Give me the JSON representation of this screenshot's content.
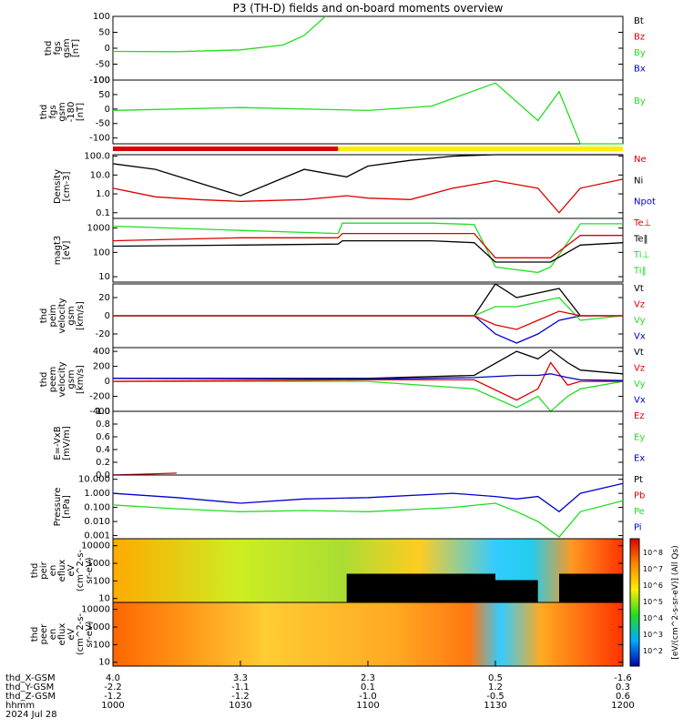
{
  "title": "P3 (TH-D) fields and on-board moments overview",
  "colors": {
    "black": "#000000",
    "red": "#dd0000",
    "green": "#22dd22",
    "blue": "#0000cc",
    "yellow": "#ffee00",
    "barred": "#dd0000"
  },
  "panels": [
    {
      "id": "fgs",
      "ylabel": [
        "thd",
        "fgs",
        "gsm",
        "[nT]"
      ],
      "ticks": [
        "100",
        "50",
        "0",
        "-50",
        "-100"
      ],
      "tickvals": [
        100,
        50,
        0,
        -50,
        -100
      ],
      "ylim": [
        -100,
        100
      ],
      "log": false,
      "legend": [
        {
          "t": "Bt",
          "c": "black"
        },
        {
          "t": "Bz",
          "c": "red"
        },
        {
          "t": "By",
          "c": "green"
        },
        {
          "t": "Bx",
          "c": "blue"
        }
      ]
    },
    {
      "id": "fgs2",
      "ylabel": [
        "thd",
        "fgs",
        "gsm",
        "-180",
        "[nT]"
      ],
      "ticks": [
        "100",
        "50",
        "0",
        "-50",
        "-100"
      ],
      "tickvals": [
        100,
        50,
        0,
        -50,
        -100
      ],
      "ylim": [
        -120,
        100
      ],
      "log": false,
      "legend": [
        {
          "t": "By",
          "c": "green"
        }
      ]
    },
    {
      "id": "density",
      "ylabel": [
        "Density",
        "[cm-3]"
      ],
      "ticks": [
        "100.0",
        "10.0",
        "1.0",
        "0.1"
      ],
      "tickvals": [
        100,
        10,
        1,
        0.1
      ],
      "ylim": [
        0.05,
        120
      ],
      "log": true,
      "legend": [
        {
          "t": "Ne",
          "c": "red"
        },
        {
          "t": "Ni",
          "c": "black"
        },
        {
          "t": "Npot",
          "c": "blue"
        }
      ]
    },
    {
      "id": "temp",
      "ylabel": [
        "magt3",
        "[eV]"
      ],
      "ticks": [
        "1000",
        "100",
        "10"
      ],
      "tickvals": [
        1000,
        100,
        10
      ],
      "ylim": [
        6,
        2500
      ],
      "log": true,
      "legend": [
        {
          "t": "Te⊥",
          "c": "red"
        },
        {
          "t": "Te‖",
          "c": "black"
        },
        {
          "t": "Ti⊥",
          "c": "green"
        },
        {
          "t": "Ti‖",
          "c": "green"
        }
      ]
    },
    {
      "id": "peim",
      "ylabel": [
        "thd",
        "peim",
        "velocity",
        "gsm",
        "[km/s]"
      ],
      "ticks": [
        "20",
        "0",
        "-20"
      ],
      "tickvals": [
        20,
        0,
        -20
      ],
      "ylim": [
        -35,
        35
      ],
      "log": false,
      "legend": [
        {
          "t": "Vt",
          "c": "black"
        },
        {
          "t": "Vz",
          "c": "red"
        },
        {
          "t": "Vy",
          "c": "green"
        },
        {
          "t": "Vx",
          "c": "blue"
        }
      ]
    },
    {
      "id": "peem",
      "ylabel": [
        "thd",
        "peem",
        "velocity",
        "gsm",
        "[km/s]"
      ],
      "ticks": [
        "400",
        "200",
        "0",
        "-200",
        "-400"
      ],
      "tickvals": [
        400,
        200,
        0,
        -200,
        -400
      ],
      "ylim": [
        -400,
        450
      ],
      "log": false,
      "legend": [
        {
          "t": "Vt",
          "c": "black"
        },
        {
          "t": "Vz",
          "c": "red"
        },
        {
          "t": "Vy",
          "c": "green"
        },
        {
          "t": "Vx",
          "c": "blue"
        }
      ]
    },
    {
      "id": "efield",
      "ylabel": [
        "E=-VxB",
        "[mV/m]"
      ],
      "ticks": [
        "1.0",
        "0.8",
        "0.6",
        "0.4",
        "0.2",
        "0.0"
      ],
      "tickvals": [
        1.0,
        0.8,
        0.6,
        0.4,
        0.2,
        0.0
      ],
      "ylim": [
        0,
        1
      ],
      "log": false,
      "legend": [
        {
          "t": "Ez",
          "c": "red"
        },
        {
          "t": "Ey",
          "c": "green"
        },
        {
          "t": "Ex",
          "c": "blue"
        }
      ]
    },
    {
      "id": "pressure",
      "ylabel": [
        "Pressure",
        "[nPa]"
      ],
      "ticks": [
        "10.000",
        "1.000",
        "0.100",
        "0.010",
        "0.001"
      ],
      "tickvals": [
        10,
        1,
        0.1,
        0.01,
        0.001
      ],
      "ylim": [
        0.0006,
        20
      ],
      "log": true,
      "legend": [
        {
          "t": "Pt",
          "c": "black"
        },
        {
          "t": "Pb",
          "c": "red"
        },
        {
          "t": "Pe",
          "c": "green"
        },
        {
          "t": "Pi",
          "c": "blue"
        }
      ]
    },
    {
      "id": "peir",
      "ylabel": [
        "thd",
        "peir",
        "en",
        "eflux",
        "eV",
        "(cm^2-s-",
        "sr-eV)"
      ],
      "ticks": [
        "10000",
        "1000",
        "100",
        "10"
      ],
      "tickvals": [
        10000,
        1000,
        100,
        10
      ],
      "ylim": [
        6,
        25000
      ],
      "log": true,
      "legend": []
    },
    {
      "id": "peer",
      "ylabel": [
        "thd",
        "peer",
        "en",
        "eflux",
        "eV",
        "(cm^2-s-",
        "sr-eV)"
      ],
      "ticks": [
        "10000",
        "1000",
        "100",
        "10"
      ],
      "tickvals": [
        10000,
        1000,
        100,
        10
      ],
      "ylim": [
        6,
        25000
      ],
      "log": true,
      "legend": []
    }
  ],
  "colorbar": {
    "label": "[eV/(cm^2-s-sr-eV)] (All Qs)",
    "ticks": [
      "10^8",
      "10^7",
      "10^6",
      "10^5",
      "10^4",
      "10^3",
      "10^2"
    ]
  },
  "xaxis": {
    "rows": [
      {
        "name": "thd_X-GSM",
        "values": [
          "4.0",
          "3.3",
          "2.3",
          "0.5",
          "-1.6"
        ]
      },
      {
        "name": "thd_Y-GSM",
        "values": [
          "-2.2",
          "-1.1",
          "0.1",
          "1.2",
          "0.3"
        ]
      },
      {
        "name": "thd_Z-GSM",
        "values": [
          "-1.2",
          "-1.2",
          "-1.0",
          "-0.5",
          "0.6"
        ]
      },
      {
        "name": "hhmm",
        "values": [
          "1000",
          "1030",
          "1100",
          "1130",
          "1200"
        ]
      }
    ],
    "date": "2024 Jul 28"
  },
  "chart_data": [
    {
      "type": "line",
      "title": "thd fgs gsm",
      "ylabel": "[nT]",
      "xlabel": "hhmm",
      "x": [
        1000,
        1015,
        1030,
        1040,
        1045,
        1050
      ],
      "ylim": [
        -100,
        100
      ],
      "series": [
        {
          "name": "By",
          "values": [
            -10,
            -11,
            -5,
            10,
            40,
            100
          ]
        }
      ]
    },
    {
      "type": "line",
      "title": "thd fgs gsm -180",
      "ylabel": "[nT]",
      "xlabel": "hhmm",
      "x": [
        1000,
        1030,
        1100,
        1115,
        1130,
        1140,
        1145,
        1150,
        1200
      ],
      "ylim": [
        -120,
        100
      ],
      "series": [
        {
          "name": "By",
          "values": [
            -5,
            5,
            -5,
            10,
            90,
            -40,
            60,
            -120,
            -120
          ]
        }
      ]
    },
    {
      "type": "line",
      "title": "Density",
      "ylabel": "[cm-3]",
      "xlabel": "hhmm",
      "x": [
        1000,
        1010,
        1020,
        1030,
        1045,
        1055,
        1100,
        1110,
        1120,
        1130,
        1140,
        1145,
        1150,
        1200
      ],
      "ylim": [
        0.05,
        120
      ],
      "series": [
        {
          "name": "Ni",
          "values": [
            40,
            20,
            4,
            0.8,
            20,
            8,
            30,
            60,
            100,
            120,
            120,
            120,
            120,
            120
          ]
        },
        {
          "name": "Ne",
          "values": [
            2,
            0.7,
            0.5,
            0.4,
            0.5,
            0.8,
            0.6,
            0.5,
            2,
            5,
            2,
            0.1,
            2,
            6
          ]
        }
      ]
    },
    {
      "type": "line",
      "title": "magt3",
      "ylabel": "[eV]",
      "xlabel": "hhmm",
      "x": [
        1000,
        1030,
        1053,
        1054,
        1115,
        1125,
        1130,
        1140,
        1143,
        1150,
        1200
      ],
      "ylim": [
        6,
        2500
      ],
      "series": [
        {
          "name": "Ti‖",
          "values": [
            1200,
            800,
            600,
            1600,
            1600,
            1400,
            25,
            15,
            25,
            1500,
            1500
          ]
        },
        {
          "name": "Te⊥",
          "values": [
            300,
            400,
            400,
            600,
            600,
            600,
            60,
            60,
            60,
            500,
            500
          ]
        },
        {
          "name": "Te‖",
          "values": [
            180,
            200,
            220,
            300,
            300,
            250,
            40,
            40,
            40,
            200,
            250
          ]
        }
      ]
    },
    {
      "type": "line",
      "title": "thd peim velocity gsm",
      "ylabel": "[km/s]",
      "xlabel": "hhmm",
      "x": [
        1000,
        1125,
        1130,
        1135,
        1140,
        1145,
        1150,
        1200
      ],
      "ylim": [
        -35,
        35
      ],
      "series": [
        {
          "name": "Vt",
          "values": [
            0,
            0,
            35,
            20,
            25,
            30,
            0,
            0
          ]
        },
        {
          "name": "Vx",
          "values": [
            0,
            0,
            -20,
            -30,
            -20,
            -5,
            0,
            0
          ]
        },
        {
          "name": "Vy",
          "values": [
            0,
            0,
            10,
            10,
            15,
            20,
            -5,
            0
          ]
        },
        {
          "name": "Vz",
          "values": [
            0,
            0,
            -10,
            -15,
            -5,
            5,
            0,
            0
          ]
        }
      ]
    },
    {
      "type": "line",
      "title": "thd peem velocity gsm",
      "ylabel": "[km/s]",
      "xlabel": "hhmm",
      "x": [
        1000,
        1100,
        1125,
        1135,
        1140,
        1143,
        1147,
        1150,
        1200
      ],
      "ylim": [
        -400,
        450
      ],
      "series": [
        {
          "name": "Vt",
          "values": [
            40,
            40,
            80,
            400,
            300,
            420,
            250,
            150,
            100
          ]
        },
        {
          "name": "Vy",
          "values": [
            0,
            0,
            -100,
            -350,
            -200,
            -400,
            -200,
            -100,
            0
          ]
        },
        {
          "name": "Vz",
          "values": [
            0,
            20,
            20,
            -250,
            -100,
            250,
            -50,
            0,
            0
          ]
        },
        {
          "name": "Vx",
          "values": [
            40,
            30,
            50,
            80,
            80,
            100,
            50,
            20,
            10
          ]
        }
      ]
    },
    {
      "type": "line",
      "title": "E=-VxB",
      "ylabel": "[mV/m]",
      "xlabel": "hhmm",
      "x": [
        1000,
        1010,
        1015
      ],
      "ylim": [
        0,
        1
      ],
      "series": [
        {
          "name": "Ez",
          "values": [
            0.0,
            0.02,
            0.03
          ]
        }
      ]
    },
    {
      "type": "line",
      "title": "Pressure",
      "ylabel": "[nPa]",
      "xlabel": "hhmm",
      "x": [
        1000,
        1015,
        1030,
        1045,
        1100,
        1120,
        1130,
        1135,
        1140,
        1145,
        1150,
        1200
      ],
      "ylim": [
        0.0006,
        20
      ],
      "series": [
        {
          "name": "Pi",
          "values": [
            1,
            0.5,
            0.2,
            0.4,
            0.5,
            1,
            0.6,
            0.4,
            0.6,
            0.05,
            1,
            5
          ]
        },
        {
          "name": "Pe",
          "values": [
            0.15,
            0.08,
            0.05,
            0.06,
            0.05,
            0.1,
            0.2,
            0.05,
            0.01,
            0.0008,
            0.05,
            0.3
          ]
        }
      ]
    },
    {
      "type": "heatmap",
      "title": "thd peir en eflux",
      "ylabel": "eV (cm^2-s-sr-eV)",
      "xlabel": "hhmm",
      "ylim": [
        6,
        25000
      ],
      "x": [
        1000,
        1100,
        1130,
        1140,
        1200
      ],
      "values": [
        [
          6,
          6,
          5,
          3,
          6
        ],
        [
          7,
          5,
          4,
          2,
          7
        ]
      ]
    },
    {
      "type": "heatmap",
      "title": "thd peer en eflux",
      "ylabel": "eV (cm^2-s-sr-eV)",
      "xlabel": "hhmm",
      "ylim": [
        6,
        25000
      ],
      "x": [
        1000,
        1100,
        1130,
        1140,
        1200
      ],
      "values": [
        [
          8,
          7,
          7,
          3,
          8
        ],
        [
          6,
          5,
          5,
          2,
          6
        ]
      ]
    }
  ]
}
